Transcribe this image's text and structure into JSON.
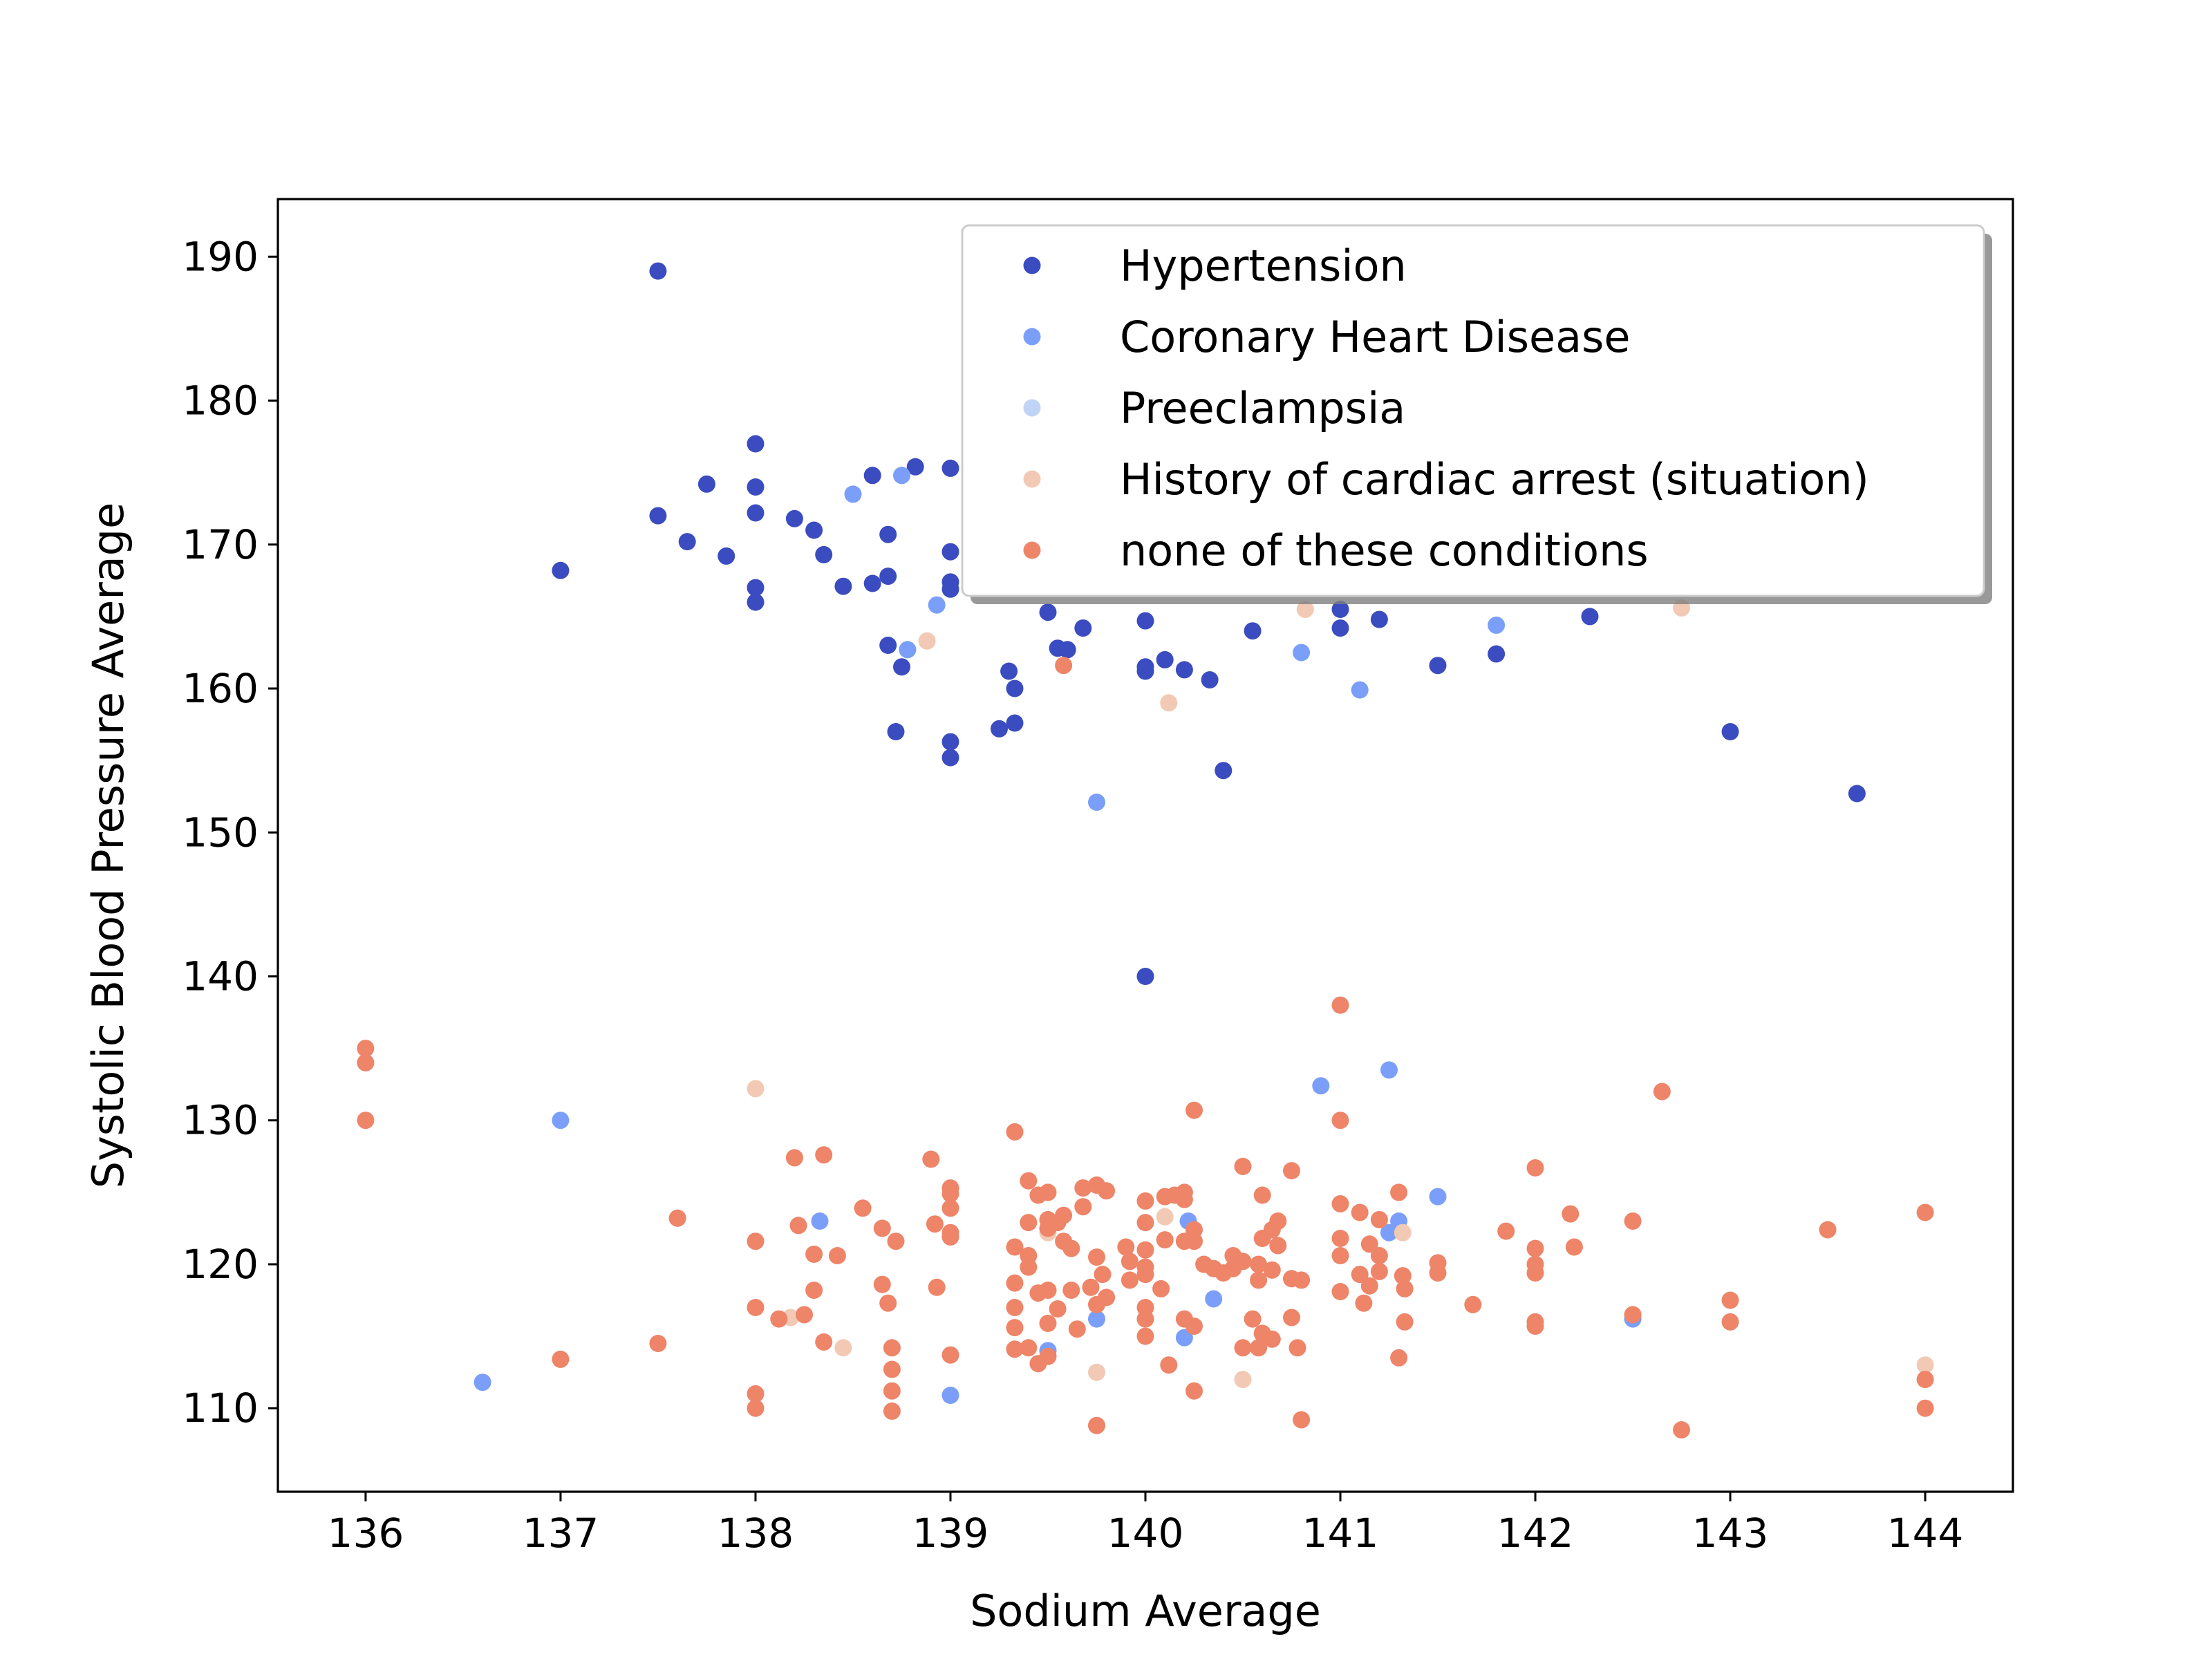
{
  "chart_data": {
    "type": "scatter",
    "title": "",
    "xlabel": "Sodium Average",
    "ylabel": "Systolic Blood Pressure Average",
    "xlim": [
      135.55,
      144.45
    ],
    "ylim": [
      104.2,
      194.0
    ],
    "x_ticks": [
      136,
      137,
      138,
      139,
      140,
      141,
      142,
      143,
      144
    ],
    "y_ticks": [
      110,
      120,
      130,
      140,
      150,
      160,
      170,
      180,
      190
    ],
    "grid": false,
    "legend": "top-right",
    "series": [
      {
        "name": "Hypertension",
        "color": "#3b4cc0",
        "points": [
          [
            137.5,
            189
          ],
          [
            137.5,
            172
          ],
          [
            137,
            168.2
          ],
          [
            137.65,
            170.2
          ],
          [
            137.75,
            174.2
          ],
          [
            137.85,
            169.2
          ],
          [
            138,
            177
          ],
          [
            138,
            174
          ],
          [
            138,
            172.2
          ],
          [
            138,
            167
          ],
          [
            138,
            166
          ],
          [
            138.2,
            171.8
          ],
          [
            138.3,
            171
          ],
          [
            138.35,
            169.3
          ],
          [
            138.45,
            167.1
          ],
          [
            138.6,
            174.8
          ],
          [
            138.6,
            167.3
          ],
          [
            138.68,
            170.7
          ],
          [
            138.68,
            167.8
          ],
          [
            138.68,
            163
          ],
          [
            138.72,
            157
          ],
          [
            138.75,
            161.5
          ],
          [
            138.82,
            175.4
          ],
          [
            139,
            175.3
          ],
          [
            139,
            169.5
          ],
          [
            139,
            167.4
          ],
          [
            139,
            166.9
          ],
          [
            139,
            156.3
          ],
          [
            139,
            155.2
          ],
          [
            139.25,
            157.2
          ],
          [
            139.3,
            161.2
          ],
          [
            139.33,
            160
          ],
          [
            139.33,
            157.6
          ],
          [
            139.5,
            165.3
          ],
          [
            139.55,
            162.8
          ],
          [
            139.6,
            162.7
          ],
          [
            139.68,
            164.2
          ],
          [
            140,
            164.7
          ],
          [
            140,
            161.5
          ],
          [
            140,
            161.2
          ],
          [
            140,
            140
          ],
          [
            140.1,
            162
          ],
          [
            140.2,
            161.3
          ],
          [
            140.33,
            160.6
          ],
          [
            140.4,
            154.3
          ],
          [
            140.55,
            164
          ],
          [
            141,
            165.5
          ],
          [
            141,
            164.2
          ],
          [
            141.2,
            164.8
          ],
          [
            141.5,
            161.6
          ],
          [
            141.8,
            162.4
          ],
          [
            142.28,
            165
          ],
          [
            143,
            157
          ],
          [
            143.65,
            152.7
          ]
        ]
      },
      {
        "name": "Coronary Heart Disease",
        "color": "#7b9ff9",
        "points": [
          [
            138.5,
            173.5
          ],
          [
            138.75,
            174.8
          ],
          [
            138.78,
            162.7
          ],
          [
            138.93,
            165.8
          ],
          [
            139.75,
            152.1
          ],
          [
            140.8,
            162.5
          ],
          [
            141.1,
            159.9
          ],
          [
            141.8,
            164.4
          ],
          [
            136.6,
            111.8
          ],
          [
            137,
            130
          ],
          [
            138.33,
            123
          ],
          [
            139,
            110.9
          ],
          [
            139.5,
            114
          ],
          [
            139.75,
            116.2
          ],
          [
            140.2,
            114.9
          ],
          [
            140.22,
            123
          ],
          [
            140.35,
            117.6
          ],
          [
            140.9,
            132.4
          ],
          [
            141.25,
            133.5
          ],
          [
            141.25,
            122.2
          ],
          [
            141.3,
            123
          ],
          [
            141.5,
            124.7
          ],
          [
            142.5,
            116.2
          ]
        ]
      },
      {
        "name": "Preeclampsia",
        "color": "#c0d4f5",
        "points": []
      },
      {
        "name": "History of cardiac arrest (situation)",
        "color": "#f2c9b4",
        "points": [
          [
            138.88,
            163.3
          ],
          [
            140.12,
            159
          ],
          [
            140.82,
            165.5
          ],
          [
            142.75,
            165.6
          ],
          [
            138,
            132.2
          ],
          [
            138.18,
            116.3
          ],
          [
            138.45,
            114.2
          ],
          [
            139.5,
            122.2
          ],
          [
            139.75,
            112.5
          ],
          [
            140.1,
            123.3
          ],
          [
            140.5,
            112
          ],
          [
            141.32,
            122.2
          ],
          [
            144,
            113
          ]
        ]
      },
      {
        "name": "none of these conditions",
        "color": "#ee8468",
        "points": [
          [
            139.58,
            161.6
          ],
          [
            136,
            135
          ],
          [
            136,
            134
          ],
          [
            136,
            130
          ],
          [
            137,
            113.4
          ],
          [
            137.5,
            114.5
          ],
          [
            137.6,
            123.2
          ],
          [
            138,
            121.6
          ],
          [
            138,
            117
          ],
          [
            138,
            111
          ],
          [
            138,
            110
          ],
          [
            138.12,
            116.2
          ],
          [
            138.2,
            127.4
          ],
          [
            138.22,
            122.7
          ],
          [
            138.25,
            116.5
          ],
          [
            138.3,
            118.2
          ],
          [
            138.3,
            120.7
          ],
          [
            138.35,
            127.6
          ],
          [
            138.35,
            114.6
          ],
          [
            138.42,
            120.6
          ],
          [
            138.55,
            123.9
          ],
          [
            138.65,
            122.5
          ],
          [
            138.65,
            118.6
          ],
          [
            138.68,
            117.3
          ],
          [
            138.7,
            114.2
          ],
          [
            138.7,
            112.7
          ],
          [
            138.7,
            111.2
          ],
          [
            138.7,
            109.8
          ],
          [
            138.72,
            121.6
          ],
          [
            138.9,
            127.3
          ],
          [
            138.92,
            122.8
          ],
          [
            138.93,
            118.4
          ],
          [
            139,
            125.3
          ],
          [
            139,
            124.9
          ],
          [
            139,
            123.9
          ],
          [
            139,
            122.2
          ],
          [
            139,
            121.9
          ],
          [
            139,
            113.7
          ],
          [
            139.33,
            129.2
          ],
          [
            139.33,
            121.2
          ],
          [
            139.33,
            118.7
          ],
          [
            139.33,
            117
          ],
          [
            139.33,
            115.6
          ],
          [
            139.33,
            114.1
          ],
          [
            139.4,
            125.8
          ],
          [
            139.4,
            122.9
          ],
          [
            139.4,
            120.6
          ],
          [
            139.4,
            119.8
          ],
          [
            139.4,
            114.2
          ],
          [
            139.45,
            124.8
          ],
          [
            139.45,
            118
          ],
          [
            139.45,
            113.1
          ],
          [
            139.5,
            125
          ],
          [
            139.5,
            123.1
          ],
          [
            139.5,
            122.5
          ],
          [
            139.5,
            118.2
          ],
          [
            139.5,
            115.9
          ],
          [
            139.5,
            113.6
          ],
          [
            139.55,
            122.9
          ],
          [
            139.55,
            116.9
          ],
          [
            139.58,
            121.6
          ],
          [
            139.58,
            123.4
          ],
          [
            139.62,
            121.1
          ],
          [
            139.62,
            118.2
          ],
          [
            139.65,
            115.5
          ],
          [
            139.68,
            124
          ],
          [
            139.68,
            125.3
          ],
          [
            139.72,
            118.4
          ],
          [
            139.75,
            125.5
          ],
          [
            139.75,
            120.5
          ],
          [
            139.75,
            117.2
          ],
          [
            139.78,
            119.3
          ],
          [
            139.8,
            125.1
          ],
          [
            139.8,
            117.7
          ],
          [
            139.75,
            108.8
          ],
          [
            139.9,
            121.2
          ],
          [
            139.92,
            120.2
          ],
          [
            139.92,
            118.9
          ],
          [
            140,
            124.4
          ],
          [
            140,
            122.9
          ],
          [
            140,
            121
          ],
          [
            140,
            119.8
          ],
          [
            140,
            119.3
          ],
          [
            140,
            117
          ],
          [
            140,
            116.2
          ],
          [
            140,
            115
          ],
          [
            140.08,
            118.3
          ],
          [
            140.1,
            124.7
          ],
          [
            140.1,
            121.7
          ],
          [
            140.15,
            124.8
          ],
          [
            140.12,
            113
          ],
          [
            140.2,
            125
          ],
          [
            140.2,
            124.5
          ],
          [
            140.2,
            121.6
          ],
          [
            140.2,
            116.2
          ],
          [
            140.25,
            121.6
          ],
          [
            140.25,
            115.7
          ],
          [
            140.25,
            122.4
          ],
          [
            140.25,
            130.7
          ],
          [
            140.25,
            111.2
          ],
          [
            140.3,
            120
          ],
          [
            140.35,
            119.7
          ],
          [
            140.4,
            119.4
          ],
          [
            140.45,
            120.6
          ],
          [
            140.45,
            119.7
          ],
          [
            140.5,
            126.8
          ],
          [
            140.5,
            120.2
          ],
          [
            140.5,
            114.2
          ],
          [
            140.55,
            116.2
          ],
          [
            140.58,
            120
          ],
          [
            140.58,
            118.9
          ],
          [
            140.58,
            114.2
          ],
          [
            140.6,
            124.8
          ],
          [
            140.6,
            121.8
          ],
          [
            140.6,
            115.2
          ],
          [
            140.65,
            122.4
          ],
          [
            140.65,
            119.6
          ],
          [
            140.65,
            114.8
          ],
          [
            140.68,
            123
          ],
          [
            140.68,
            121.3
          ],
          [
            140.75,
            119
          ],
          [
            140.75,
            126.5
          ],
          [
            140.75,
            116.3
          ],
          [
            140.78,
            114.2
          ],
          [
            140.8,
            118.9
          ],
          [
            140.8,
            109.2
          ],
          [
            141,
            138
          ],
          [
            141,
            130
          ],
          [
            141,
            124.2
          ],
          [
            141,
            121.8
          ],
          [
            141,
            120.6
          ],
          [
            141,
            118.1
          ],
          [
            141.1,
            123.6
          ],
          [
            141.1,
            119.3
          ],
          [
            141.12,
            117.3
          ],
          [
            141.15,
            121.4
          ],
          [
            141.15,
            118.5
          ],
          [
            141.2,
            123.1
          ],
          [
            141.2,
            120.6
          ],
          [
            141.2,
            119.5
          ],
          [
            141.3,
            125
          ],
          [
            141.3,
            113.5
          ],
          [
            141.32,
            119.2
          ],
          [
            141.33,
            118.3
          ],
          [
            141.33,
            116
          ],
          [
            141.5,
            120.1
          ],
          [
            141.5,
            119.4
          ],
          [
            141.68,
            117.2
          ],
          [
            141.85,
            122.3
          ],
          [
            142,
            126.7
          ],
          [
            142,
            121.1
          ],
          [
            142,
            120
          ],
          [
            142,
            119.4
          ],
          [
            142,
            116
          ],
          [
            142,
            115.7
          ],
          [
            142.18,
            123.5
          ],
          [
            142.2,
            121.2
          ],
          [
            142.5,
            123
          ],
          [
            142.5,
            116.5
          ],
          [
            142.65,
            132
          ],
          [
            142.75,
            108.5
          ],
          [
            143,
            117.5
          ],
          [
            143,
            116
          ],
          [
            143.5,
            122.4
          ],
          [
            144,
            123.6
          ],
          [
            144,
            112
          ],
          [
            144,
            110
          ]
        ]
      }
    ]
  }
}
